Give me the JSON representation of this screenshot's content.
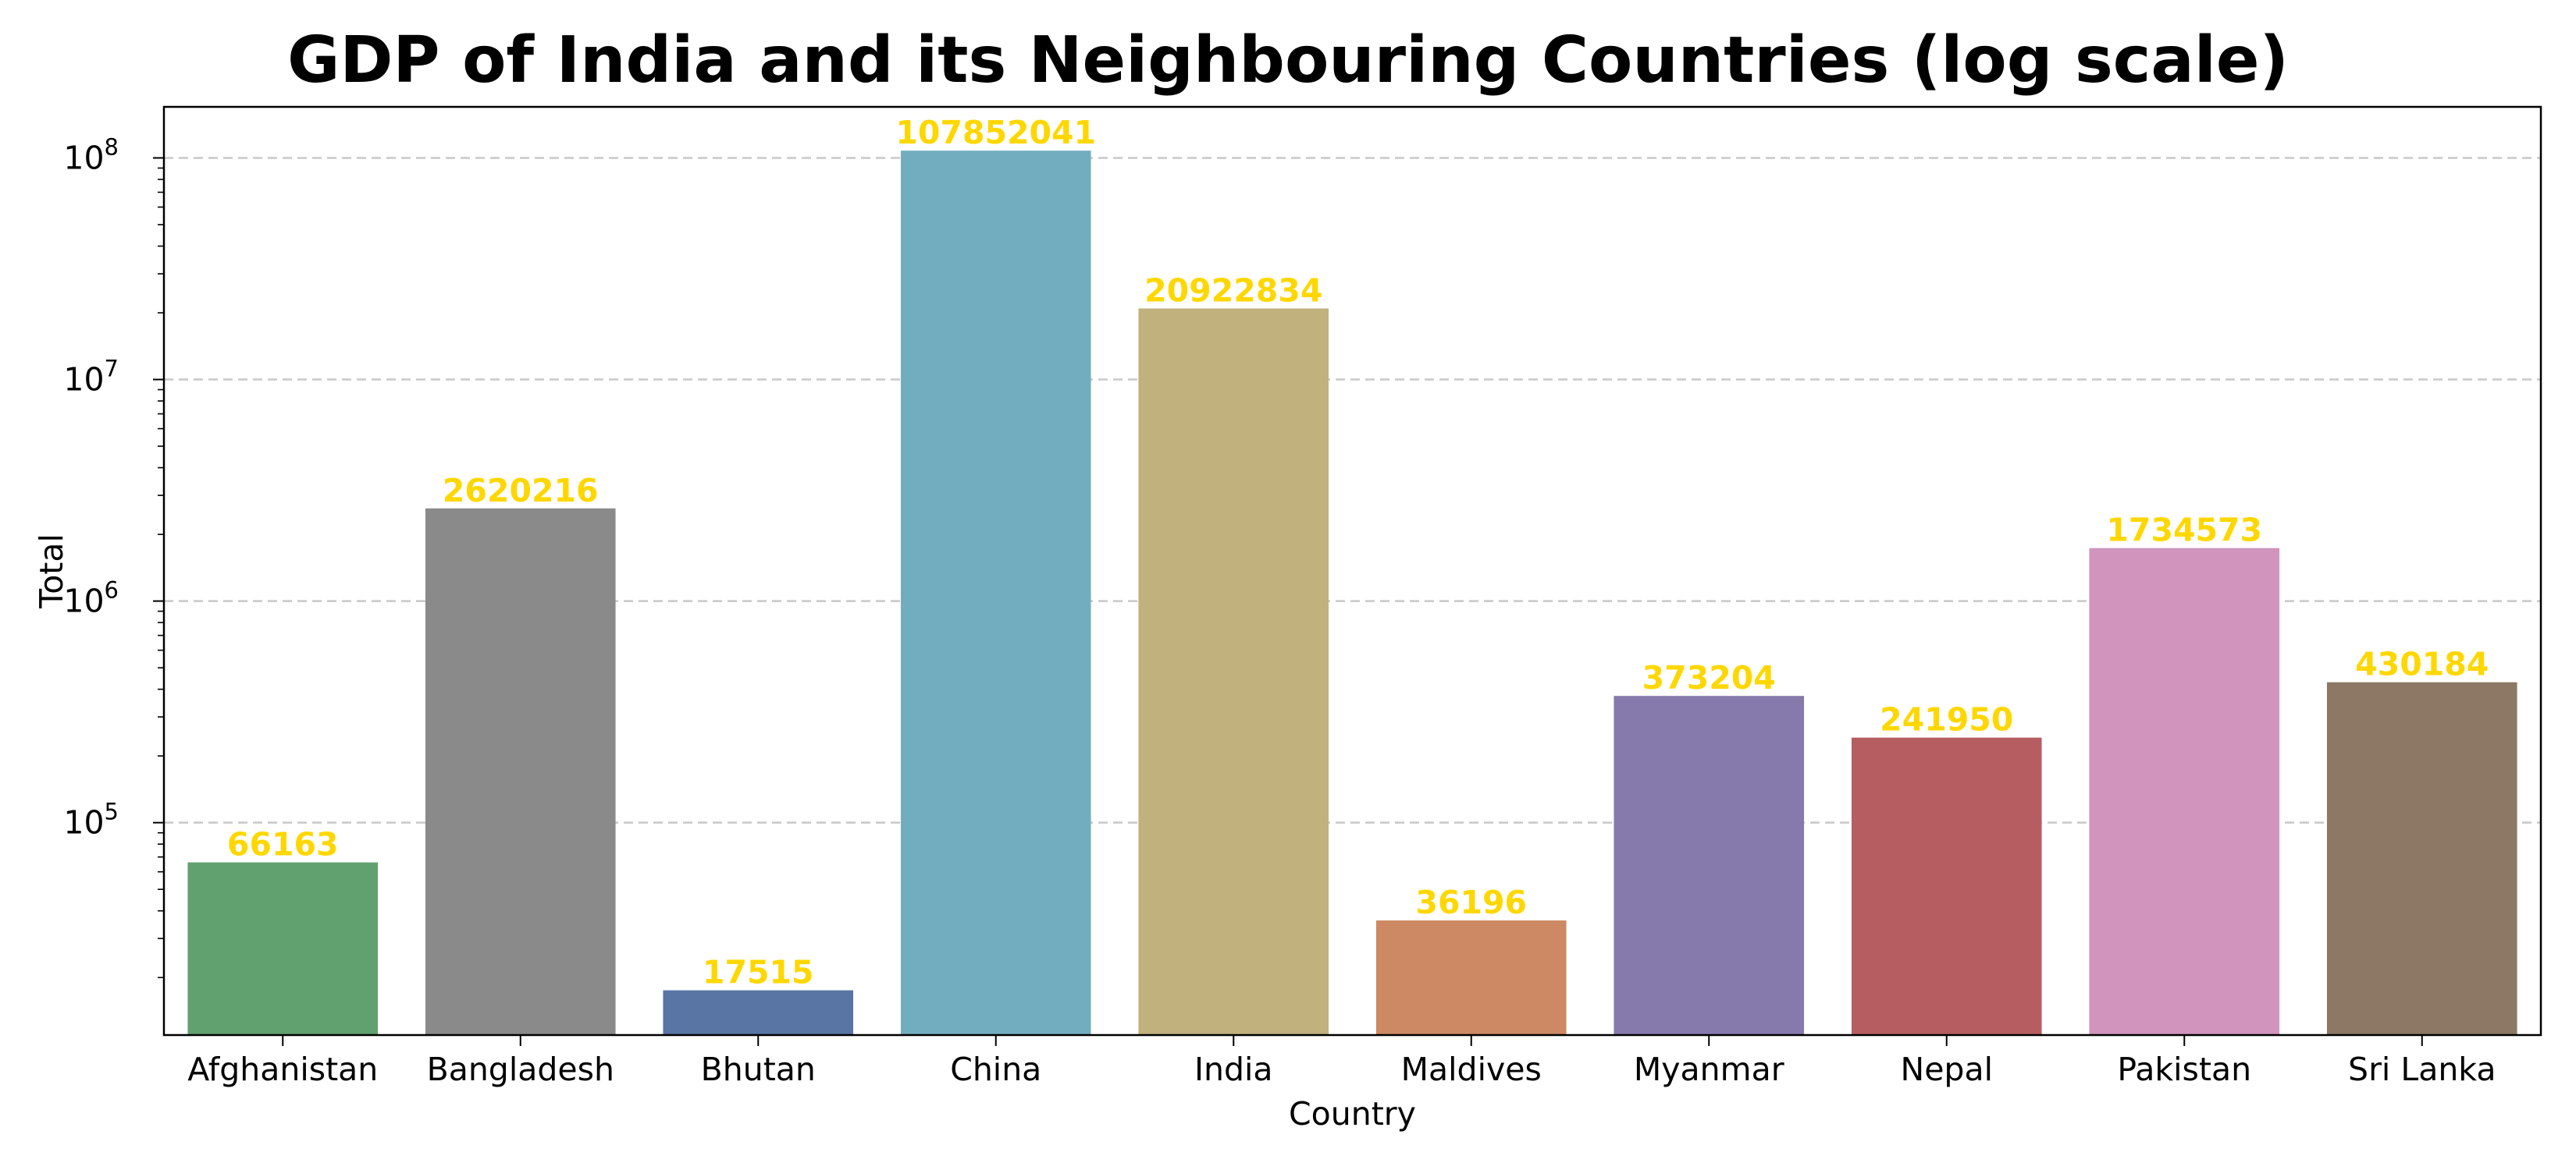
{
  "chart_data": {
    "type": "bar",
    "title": "GDP of India and its Neighbouring Countries (log scale)",
    "xlabel": "Country",
    "ylabel": "Total",
    "yscale": "log",
    "ylim": [
      11000,
      170000000
    ],
    "yticks": [
      {
        "value": 100000,
        "base": "10",
        "exp": "5"
      },
      {
        "value": 1000000,
        "base": "10",
        "exp": "6"
      },
      {
        "value": 10000000,
        "base": "10",
        "exp": "7"
      },
      {
        "value": 100000000,
        "base": "10",
        "exp": "8"
      }
    ],
    "grid": "y-major-dashed",
    "categories": [
      "Afghanistan",
      "Bangladesh",
      "Bhutan",
      "China",
      "India",
      "Maldives",
      "Myanmar",
      "Nepal",
      "Pakistan",
      "Sri Lanka"
    ],
    "values": [
      66163,
      2620216,
      17515,
      107852041,
      20922834,
      36196,
      373204,
      241950,
      1734573,
      430184
    ],
    "data_labels": [
      "66163",
      "2620216",
      "17515",
      "107852041",
      "20922834",
      "36196",
      "373204",
      "241950",
      "1734573",
      "430184"
    ],
    "colors": [
      "#61a06f",
      "#8a8a8a",
      "#5875a4",
      "#72adbf",
      "#c0b17d",
      "#cc8963",
      "#857aab",
      "#b55d60",
      "#d094bd",
      "#8c7865"
    ],
    "label_color": "#ffd700"
  }
}
